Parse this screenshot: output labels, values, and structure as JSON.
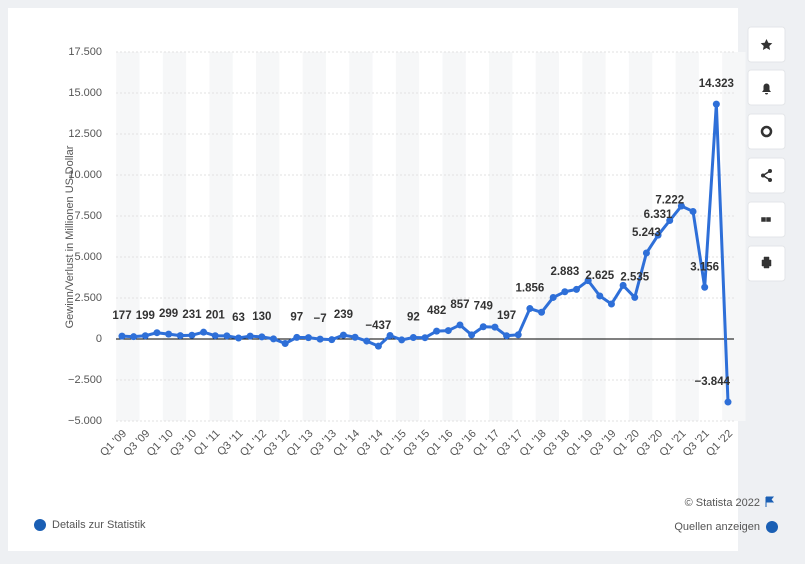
{
  "chart_data": {
    "type": "line",
    "ylabel": "Gewinn/Verlust in Millionen US-Dollar",
    "categories": [
      "Q1 '09",
      null,
      "Q3 '09",
      null,
      "Q1 '10",
      null,
      "Q3 '10",
      null,
      "Q1 '11",
      null,
      "Q3 '11",
      null,
      "Q1 '12",
      null,
      "Q3 '12",
      null,
      "Q1 '13",
      null,
      "Q3 '13",
      null,
      "Q1 '14",
      null,
      "Q3 '14",
      null,
      "Q1 '15",
      null,
      "Q3 '15",
      null,
      "Q1 '16",
      null,
      "Q3 '16",
      null,
      "Q1 '17",
      null,
      "Q3 '17",
      null,
      "Q1 '18",
      null,
      "Q3 '18",
      null,
      "Q1 '19",
      null,
      "Q3 '19",
      null,
      "Q1 '20",
      null,
      "Q3 '20",
      null,
      "Q1 '21",
      null,
      "Q3 '21",
      null,
      "Q1 '22"
    ],
    "values": [
      177,
      142,
      199,
      384,
      299,
      207,
      231,
      416,
      201,
      191,
      63,
      177,
      130,
      7,
      -274,
      97,
      82,
      -7,
      -41,
      239,
      108,
      -126,
      -437,
      214,
      -57,
      92,
      79,
      482,
      513,
      857,
      252,
      749,
      724,
      197,
      256,
      1856,
      1629,
      2534,
      2883,
      3027,
      3561,
      2625,
      2134,
      3268,
      2535,
      5243,
      6331,
      7222,
      8107,
      7778,
      3156,
      14323,
      -3844
    ],
    "value_labels": [
      "177",
      null,
      "199",
      null,
      "299",
      null,
      "231",
      null,
      "201",
      null,
      "63",
      null,
      "130",
      null,
      null,
      "97",
      null,
      "−7",
      null,
      "239",
      null,
      null,
      "−437",
      null,
      null,
      "92",
      null,
      "482",
      null,
      "857",
      null,
      "749",
      null,
      "197",
      null,
      "1.856",
      null,
      null,
      "2.883",
      null,
      null,
      "2.625",
      null,
      null,
      "2.535",
      "5.243",
      "6.331",
      "7.222",
      null,
      null,
      "3.156",
      "14.323",
      "−3.844"
    ],
    "color": "#2e6fd8",
    "ylim": [
      -5000,
      17500
    ],
    "yticks": [
      {
        "value": -5000,
        "label": "−5.000"
      },
      {
        "value": -2500,
        "label": "−2.500"
      },
      0,
      {
        "value": 2500,
        "label": "2.500"
      },
      {
        "value": 5000,
        "label": "5.000"
      },
      {
        "value": 7500,
        "label": "7.500"
      },
      {
        "value": 10000,
        "label": "10.000"
      },
      {
        "value": 12500,
        "label": "12.500"
      },
      {
        "value": 15000,
        "label": "15.000"
      },
      {
        "value": 17500,
        "label": "17.500"
      }
    ],
    "grid": true
  },
  "footer": {
    "copyright": "© Statista 2022",
    "details": "Details zur Statistik",
    "sources": "Quellen anzeigen"
  }
}
